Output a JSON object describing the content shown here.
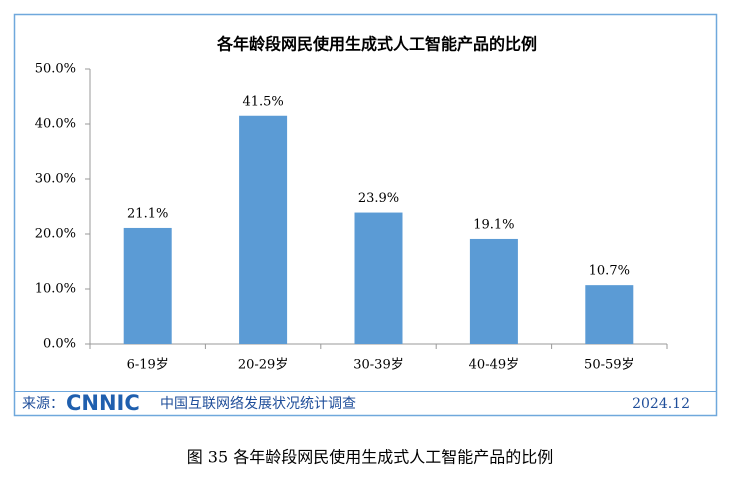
{
  "chart_data": {
    "type": "bar",
    "title": "各年龄段网民使用生成式人工智能产品的比例",
    "categories": [
      "6-19岁",
      "20-29岁",
      "30-39岁",
      "40-49岁",
      "50-59岁"
    ],
    "values": [
      21.1,
      41.5,
      23.9,
      19.1,
      10.7
    ],
    "value_labels": [
      "21.1%",
      "41.5%",
      "23.9%",
      "19.1%",
      "10.7%"
    ],
    "color": "#5b9bd5",
    "ylim": [
      0,
      50
    ],
    "yticks": [
      {
        "value": 0,
        "label": "0.0%"
      },
      {
        "value": 10,
        "label": "10.0%"
      },
      {
        "value": 20,
        "label": "20.0%"
      },
      {
        "value": 30,
        "label": "30.0%"
      },
      {
        "value": 40,
        "label": "40.0%"
      },
      {
        "value": 50,
        "label": "50.0%"
      }
    ],
    "grid": false
  },
  "footer": {
    "source_label": "来源：",
    "logo": "CNNIC",
    "org": "中国互联网络发展状况统计调查",
    "date": "2024.12"
  },
  "caption": "图 35  各年龄段网民使用生成式人工智能产品的比例"
}
